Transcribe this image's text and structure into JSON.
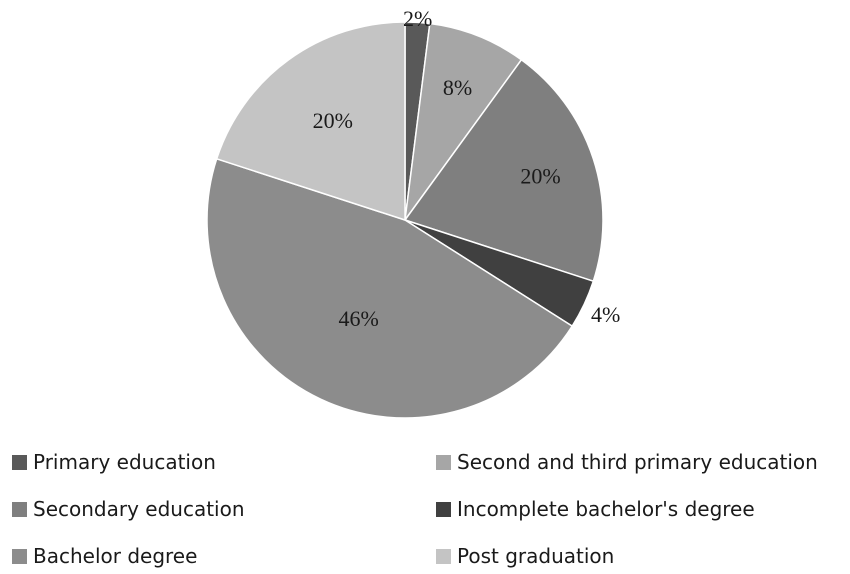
{
  "chart_data": {
    "type": "pie",
    "title": "",
    "categories": [
      "Primary education",
      "Second and third primary education",
      "Secondary education",
      "Incomplete bachelor's degree",
      "Bachelor degree",
      "Post graduation"
    ],
    "values": [
      2,
      8,
      20,
      4,
      46,
      20
    ],
    "value_labels": [
      "2%",
      "8%",
      "20%",
      "4%",
      "46%",
      "20%"
    ],
    "unit": "%",
    "colors": [
      "#595959",
      "#a6a6a6",
      "#7f7f7f",
      "#404040",
      "#8c8c8c",
      "#c4c4c4"
    ],
    "legend_position": "bottom",
    "start_angle_deg": 0,
    "direction": "clockwise"
  }
}
